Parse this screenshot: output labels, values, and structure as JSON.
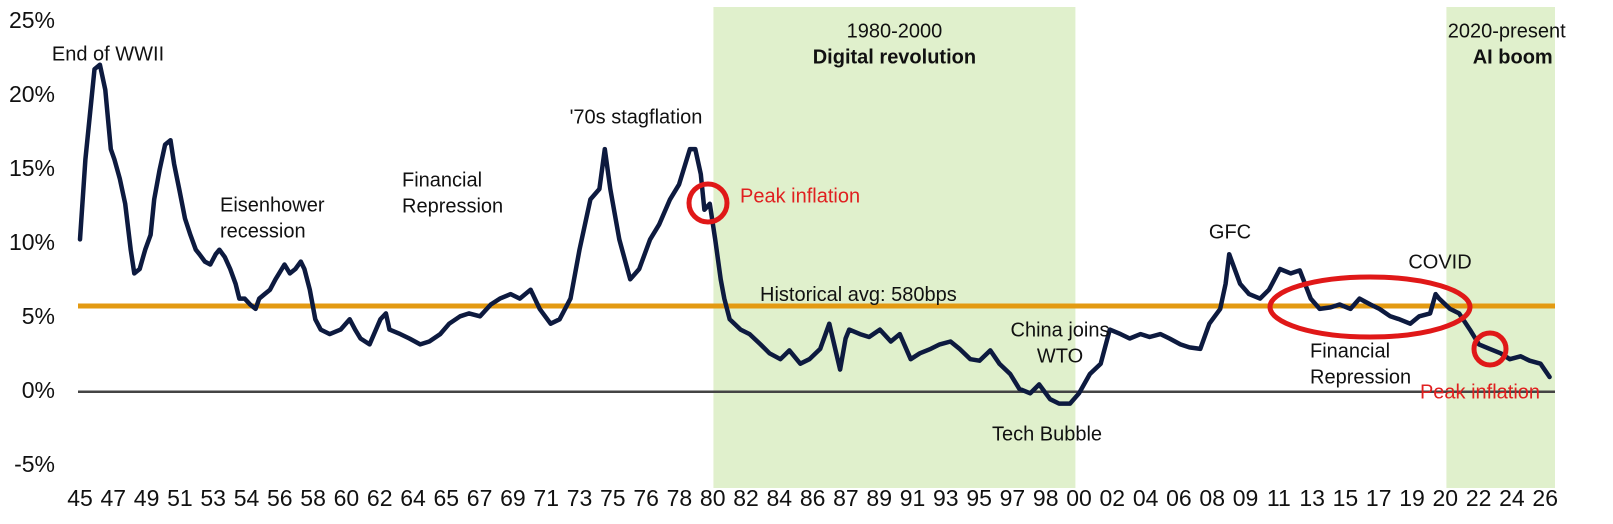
{
  "chart_data": {
    "type": "line",
    "xlim": [
      1945,
      2026.5
    ],
    "ylim": [
      -6.5,
      26
    ],
    "yticks": [
      {
        "value": 25,
        "label": "25%"
      },
      {
        "value": 20,
        "label": "20%"
      },
      {
        "value": 15,
        "label": "15%"
      },
      {
        "value": 10,
        "label": "10%"
      },
      {
        "value": 5,
        "label": "5%"
      },
      {
        "value": 0,
        "label": "0%"
      },
      {
        "value": -5,
        "label": "-5%"
      }
    ],
    "xticks": [
      {
        "value": 1945.0,
        "label": "45"
      },
      {
        "value": 1946.84,
        "label": "47"
      },
      {
        "value": 1948.68,
        "label": "49"
      },
      {
        "value": 1950.52,
        "label": "51"
      },
      {
        "value": 1952.36,
        "label": "53"
      },
      {
        "value": 1954.2,
        "label": "54"
      },
      {
        "value": 1956.04,
        "label": "56"
      },
      {
        "value": 1957.88,
        "label": "58"
      },
      {
        "value": 1959.72,
        "label": "60"
      },
      {
        "value": 1961.56,
        "label": "62"
      },
      {
        "value": 1963.4,
        "label": "64"
      },
      {
        "value": 1965.24,
        "label": "65"
      },
      {
        "value": 1967.08,
        "label": "67"
      },
      {
        "value": 1968.92,
        "label": "69"
      },
      {
        "value": 1970.76,
        "label": "71"
      },
      {
        "value": 1972.6,
        "label": "73"
      },
      {
        "value": 1974.44,
        "label": "75"
      },
      {
        "value": 1976.28,
        "label": "76"
      },
      {
        "value": 1978.12,
        "label": "78"
      },
      {
        "value": 1979.96,
        "label": "80"
      },
      {
        "value": 1981.8,
        "label": "82"
      },
      {
        "value": 1983.64,
        "label": "84"
      },
      {
        "value": 1985.48,
        "label": "86"
      },
      {
        "value": 1987.32,
        "label": "87"
      },
      {
        "value": 1989.16,
        "label": "89"
      },
      {
        "value": 1991.0,
        "label": "91"
      },
      {
        "value": 1992.84,
        "label": "93"
      },
      {
        "value": 1994.68,
        "label": "95"
      },
      {
        "value": 1996.52,
        "label": "97"
      },
      {
        "value": 1998.36,
        "label": "98"
      },
      {
        "value": 2000.2,
        "label": "00"
      },
      {
        "value": 2002.04,
        "label": "02"
      },
      {
        "value": 2003.88,
        "label": "04"
      },
      {
        "value": 2005.72,
        "label": "06"
      },
      {
        "value": 2007.56,
        "label": "08"
      },
      {
        "value": 2009.4,
        "label": "09"
      },
      {
        "value": 2011.24,
        "label": "11"
      },
      {
        "value": 2013.08,
        "label": "13"
      },
      {
        "value": 2014.92,
        "label": "15"
      },
      {
        "value": 2016.76,
        "label": "17"
      },
      {
        "value": 2018.6,
        "label": "19"
      },
      {
        "value": 2020.44,
        "label": "20"
      },
      {
        "value": 2022.28,
        "label": "22"
      },
      {
        "value": 2024.12,
        "label": "24"
      },
      {
        "value": 2025.96,
        "label": "26"
      }
    ],
    "regions": [
      {
        "start": 1980,
        "end": 2000,
        "label": "1980-2000",
        "sublabel": "Digital revolution",
        "color": "#e0f0cc"
      },
      {
        "start": 2020.5,
        "end": 2026.5,
        "label": "2020-present",
        "sublabel": "AI boom",
        "color": "#e0f0cc"
      }
    ],
    "hlines": [
      {
        "value": 5.8,
        "label": "Historical avg: 580bps",
        "color": "#e39a12"
      },
      {
        "value": 0,
        "color": "#444444"
      }
    ],
    "x": [
      1945.0,
      1945.3,
      1945.8,
      1946.1,
      1946.4,
      1946.7,
      1946.9,
      1947.2,
      1947.5,
      1947.8,
      1948.0,
      1948.3,
      1948.6,
      1948.9,
      1949.1,
      1949.4,
      1949.7,
      1950.0,
      1950.2,
      1950.5,
      1950.8,
      1951.1,
      1951.4,
      1951.6,
      1951.9,
      1952.2,
      1952.5,
      1952.7,
      1953.0,
      1953.3,
      1953.6,
      1953.8,
      1954.1,
      1954.4,
      1954.7,
      1954.9,
      1955.2,
      1955.5,
      1955.8,
      1956.0,
      1956.3,
      1956.6,
      1956.9,
      1957.2,
      1957.4,
      1957.7,
      1958.0,
      1958.3,
      1958.8,
      1959.4,
      1959.9,
      1960.2,
      1960.5,
      1961.0,
      1961.6,
      1961.9,
      1962.1,
      1962.7,
      1963.2,
      1963.8,
      1964.3,
      1964.9,
      1965.4,
      1966.0,
      1966.5,
      1967.1,
      1967.7,
      1968.2,
      1968.8,
      1969.3,
      1969.9,
      1970.4,
      1971.0,
      1971.5,
      1972.1,
      1972.6,
      1973.2,
      1973.7,
      1974.0,
      1974.3,
      1974.8,
      1975.4,
      1975.9,
      1976.5,
      1977.0,
      1977.6,
      1978.1,
      1978.7,
      1979.0,
      1979.3,
      1979.5,
      1979.8,
      1980.1,
      1980.4,
      1980.6,
      1980.9,
      1981.5,
      1982.0,
      1982.6,
      1983.1,
      1983.7,
      1984.2,
      1984.8,
      1985.3,
      1985.9,
      1986.4,
      1987.0,
      1987.3,
      1987.5,
      1988.1,
      1988.6,
      1989.2,
      1989.8,
      1990.3,
      1990.9,
      1991.4,
      1992.0,
      1992.5,
      1993.1,
      1993.6,
      1994.2,
      1994.7,
      1995.3,
      1995.8,
      1996.4,
      1996.9,
      1997.5,
      1998.0,
      1998.6,
      1999.1,
      1999.7,
      2000.2,
      2000.8,
      2001.4,
      2001.9,
      2002.5,
      2003.0,
      2003.6,
      2004.1,
      2004.7,
      2005.2,
      2005.8,
      2006.3,
      2006.9,
      2007.4,
      2008.0,
      2008.3,
      2008.5,
      2009.1,
      2009.6,
      2010.2,
      2010.7,
      2011.3,
      2011.9,
      2012.4,
      2013.0,
      2013.5,
      2014.1,
      2014.6,
      2015.2,
      2015.7,
      2016.3,
      2016.8,
      2017.4,
      2017.9,
      2018.5,
      2019.0,
      2019.6,
      2019.9,
      2020.1,
      2020.7,
      2021.2,
      2021.8,
      2022.3,
      2022.9,
      2023.5,
      2024.0,
      2024.6,
      2025.1,
      2025.7,
      2026.2
    ],
    "series": [
      {
        "color": "#0d1a3f",
        "values": [
          10.3,
          15.7,
          21.8,
          22.1,
          20.4,
          16.4,
          15.7,
          14.4,
          12.7,
          9.6,
          8.0,
          8.3,
          9.6,
          10.6,
          13.0,
          15.0,
          16.7,
          17.0,
          15.4,
          13.6,
          11.7,
          10.6,
          9.6,
          9.3,
          8.8,
          8.6,
          9.3,
          9.6,
          9.1,
          8.3,
          7.3,
          6.3,
          6.3,
          5.9,
          5.6,
          6.3,
          6.6,
          6.9,
          7.6,
          8.0,
          8.6,
          8.0,
          8.3,
          8.8,
          8.3,
          6.9,
          4.9,
          4.2,
          3.9,
          4.2,
          4.9,
          4.2,
          3.6,
          3.2,
          4.9,
          5.3,
          4.2,
          3.9,
          3.6,
          3.2,
          3.4,
          3.9,
          4.6,
          5.1,
          5.3,
          5.1,
          5.9,
          6.3,
          6.6,
          6.3,
          6.9,
          5.6,
          4.6,
          4.9,
          6.3,
          9.6,
          13.0,
          13.7,
          16.4,
          13.7,
          10.3,
          7.6,
          8.3,
          10.3,
          11.3,
          13.0,
          14.0,
          16.4,
          16.4,
          14.7,
          12.3,
          12.7,
          10.3,
          7.6,
          6.3,
          4.9,
          4.2,
          3.9,
          3.2,
          2.6,
          2.2,
          2.8,
          1.9,
          2.2,
          2.9,
          4.6,
          1.5,
          3.6,
          4.2,
          3.9,
          3.7,
          4.2,
          3.4,
          3.9,
          2.2,
          2.6,
          2.9,
          3.2,
          3.4,
          2.9,
          2.2,
          2.1,
          2.8,
          1.9,
          1.2,
          0.2,
          -0.1,
          0.5,
          -0.5,
          -0.8,
          -0.8,
          -0.1,
          1.2,
          1.9,
          4.2,
          3.9,
          3.6,
          3.9,
          3.7,
          3.9,
          3.6,
          3.2,
          3.0,
          2.9,
          4.6,
          5.6,
          7.3,
          9.3,
          7.3,
          6.6,
          6.3,
          6.9,
          8.3,
          8.0,
          8.2,
          6.3,
          5.6,
          5.7,
          5.9,
          5.6,
          6.3,
          5.9,
          5.6,
          5.1,
          4.9,
          4.6,
          5.1,
          5.3,
          6.6,
          6.3,
          5.6,
          5.3,
          4.2,
          3.2,
          2.9,
          2.6,
          2.2,
          2.4,
          2.1,
          1.9,
          1.0
        ]
      }
    ],
    "annotations": [
      {
        "lines": [
          "End of WWII"
        ]
      },
      {
        "lines": [
          "Eisenhower",
          "recession"
        ]
      },
      {
        "lines": [
          "Financial",
          "Repression"
        ]
      },
      {
        "lines": [
          "'70s stagflation"
        ]
      },
      {
        "lines": [
          "Peak inflation"
        ],
        "color": "#e02020"
      },
      {
        "lines": [
          "China joins",
          "WTO"
        ]
      },
      {
        "lines": [
          "Tech Bubble"
        ]
      },
      {
        "lines": [
          "GFC"
        ]
      },
      {
        "lines": [
          "COVID"
        ]
      },
      {
        "lines": [
          "Financial",
          "Repression"
        ]
      },
      {
        "lines": [
          "Peak inflation"
        ],
        "color": "#e02020"
      }
    ]
  }
}
